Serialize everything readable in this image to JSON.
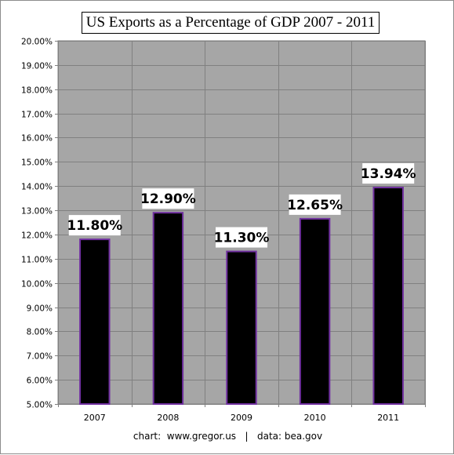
{
  "chart_data": {
    "type": "bar",
    "title": "US Exports as a Percentage of GDP 2007 - 2011",
    "categories": [
      "2007",
      "2008",
      "2009",
      "2010",
      "2011"
    ],
    "values": [
      11.8,
      12.9,
      11.3,
      12.65,
      13.94
    ],
    "data_labels": [
      "11.80%",
      "12.90%",
      "11.30%",
      "12.65%",
      "13.94%"
    ],
    "ylim": [
      5,
      20
    ],
    "ytick_labels": [
      "5.00%",
      "6.00%",
      "7.00%",
      "8.00%",
      "9.00%",
      "10.00%",
      "11.00%",
      "12.00%",
      "13.00%",
      "14.00%",
      "15.00%",
      "16.00%",
      "17.00%",
      "18.00%",
      "19.00%",
      "20.00%"
    ],
    "grid": true,
    "colors": {
      "plot_bg": "#a6a6a6",
      "bar_fill": "#000000",
      "bar_edge": "#7030a0",
      "grid": "#808080"
    }
  },
  "footer": {
    "source": "chart:  www.gregor.us   |   data: bea.gov"
  }
}
